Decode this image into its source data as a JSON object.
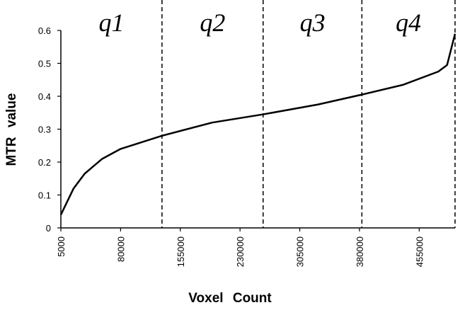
{
  "chart_data": {
    "type": "line",
    "xlabel": "Voxel Count",
    "ylabel": "MTR value",
    "x": [
      5000,
      21000,
      35000,
      57000,
      80000,
      132000,
      195000,
      259000,
      328000,
      383000,
      435000,
      479000,
      490000,
      500000
    ],
    "values": [
      0.04,
      0.12,
      0.165,
      0.21,
      0.24,
      0.28,
      0.32,
      0.345,
      0.375,
      0.405,
      0.435,
      0.475,
      0.495,
      0.59
    ],
    "color": "#000000",
    "xlim": [
      5000,
      500000
    ],
    "xticks": [
      5000,
      80000,
      155000,
      230000,
      305000,
      380000,
      455000
    ],
    "ylim": [
      0,
      0.6
    ],
    "yticks": [
      0,
      0.1,
      0.2,
      0.3,
      0.4,
      0.5,
      0.6
    ],
    "grid": false,
    "quartiles": [
      {
        "label": "q1",
        "boundary": 132000
      },
      {
        "label": "q2",
        "boundary": 259000
      },
      {
        "label": "q3",
        "boundary": 383000
      },
      {
        "label": "q4",
        "boundary": 500000
      }
    ]
  }
}
